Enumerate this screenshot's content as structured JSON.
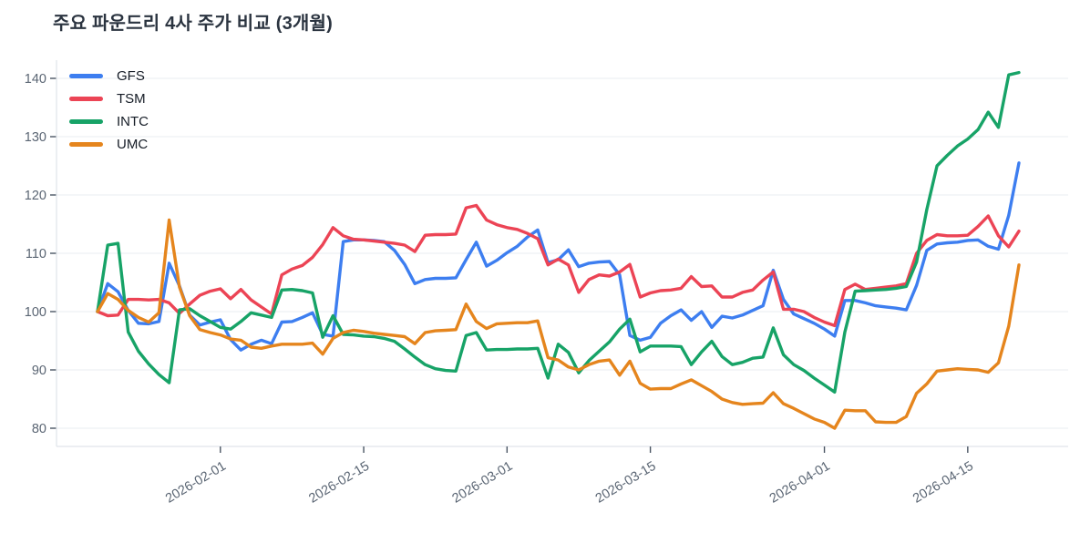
{
  "chart_data": {
    "type": "line",
    "title": "주요 파운드리 4사 주가 비교 (3개월)",
    "xlabel": "",
    "ylabel": "",
    "ylim": [
      78,
      142
    ],
    "y_ticks": [
      80,
      90,
      100,
      110,
      120,
      130,
      140
    ],
    "x_ticks": [
      "2026-02-01",
      "2026-02-15",
      "2026-03-01",
      "2026-03-15",
      "2026-04-01",
      "2026-04-15"
    ],
    "grid": true,
    "legend_position": "top-left",
    "x": [
      "2026-01-20",
      "2026-01-21",
      "2026-01-22",
      "2026-01-23",
      "2026-01-24",
      "2026-01-25",
      "2026-01-26",
      "2026-01-27",
      "2026-01-28",
      "2026-01-29",
      "2026-01-30",
      "2026-01-31",
      "2026-02-01",
      "2026-02-02",
      "2026-02-03",
      "2026-02-04",
      "2026-02-05",
      "2026-02-06",
      "2026-02-07",
      "2026-02-08",
      "2026-02-09",
      "2026-02-10",
      "2026-02-11",
      "2026-02-12",
      "2026-02-13",
      "2026-02-14",
      "2026-02-15",
      "2026-02-16",
      "2026-02-17",
      "2026-02-18",
      "2026-02-19",
      "2026-02-20",
      "2026-02-21",
      "2026-02-22",
      "2026-02-23",
      "2026-02-24",
      "2026-02-25",
      "2026-02-26",
      "2026-02-27",
      "2026-02-28",
      "2026-03-01",
      "2026-03-02",
      "2026-03-03",
      "2026-03-04",
      "2026-03-05",
      "2026-03-06",
      "2026-03-07",
      "2026-03-08",
      "2026-03-09",
      "2026-03-10",
      "2026-03-11",
      "2026-03-12",
      "2026-03-13",
      "2026-03-14",
      "2026-03-15",
      "2026-03-16",
      "2026-03-17",
      "2026-03-18",
      "2026-03-19",
      "2026-03-20",
      "2026-03-21",
      "2026-03-22",
      "2026-03-23",
      "2026-03-24",
      "2026-03-25",
      "2026-03-26",
      "2026-03-27",
      "2026-03-28",
      "2026-03-29",
      "2026-03-30",
      "2026-03-31",
      "2026-04-01",
      "2026-04-02",
      "2026-04-03",
      "2026-04-04",
      "2026-04-05",
      "2026-04-06",
      "2026-04-07",
      "2026-04-08",
      "2026-04-09",
      "2026-04-10",
      "2026-04-11",
      "2026-04-12",
      "2026-04-13",
      "2026-04-14",
      "2026-04-15",
      "2026-04-16",
      "2026-04-17",
      "2026-04-18",
      "2026-04-19",
      "2026-04-20"
    ],
    "series": [
      {
        "name": "GFS",
        "color": "#3d7ef0",
        "values": [
          100.0,
          104.8,
          103.4,
          100.2,
          98.0,
          97.9,
          98.3,
          108.3,
          104.4,
          99.4,
          97.7,
          98.2,
          98.6,
          95.2,
          93.4,
          94.4,
          95.1,
          94.5,
          98.2,
          98.3,
          99.0,
          99.8,
          96.1,
          95.8,
          112.0,
          112.3,
          112.3,
          112.2,
          112.0,
          110.5,
          108.1,
          104.8,
          105.5,
          105.7,
          105.7,
          105.8,
          108.9,
          111.9,
          107.8,
          108.8,
          110.1,
          111.2,
          112.8,
          114.0,
          108.4,
          108.9,
          110.6,
          107.7,
          108.3,
          108.5,
          108.6,
          106.3,
          95.9,
          95.1,
          95.6,
          98.0,
          99.3,
          100.3,
          98.5,
          100.0,
          97.3,
          99.2,
          98.9,
          99.4,
          100.2,
          101.0,
          107.1,
          102.1,
          99.6,
          98.8,
          98.0,
          97.0,
          95.8,
          101.9,
          101.9,
          101.5,
          101.0,
          100.8,
          100.6,
          100.3,
          104.5,
          110.5,
          111.6,
          111.8,
          111.9,
          112.2,
          112.3,
          111.2,
          110.7,
          116.5,
          125.5
        ]
      },
      {
        "name": "TSM",
        "color": "#ec4455",
        "values": [
          100.0,
          99.3,
          99.4,
          102.1,
          102.1,
          102.0,
          102.1,
          101.5,
          99.7,
          101.3,
          102.8,
          103.5,
          103.9,
          102.2,
          103.8,
          102.0,
          100.8,
          99.6,
          106.3,
          107.3,
          107.9,
          109.3,
          111.5,
          114.4,
          113.0,
          112.4,
          112.3,
          112.1,
          111.9,
          111.7,
          111.4,
          110.3,
          113.1,
          113.2,
          113.2,
          113.3,
          117.8,
          118.2,
          115.7,
          114.9,
          114.4,
          114.1,
          113.4,
          112.5,
          108.0,
          109.0,
          108.0,
          103.3,
          105.5,
          106.3,
          106.1,
          106.8,
          108.1,
          102.5,
          103.2,
          103.6,
          103.7,
          104.0,
          106.0,
          104.3,
          104.4,
          102.5,
          102.5,
          103.3,
          103.7,
          105.4,
          106.8,
          100.4,
          100.4,
          100.0,
          99.0,
          98.2,
          97.6,
          103.8,
          104.7,
          103.8,
          104.0,
          104.2,
          104.4,
          104.8,
          110.0,
          112.2,
          113.2,
          113.0,
          113.0,
          113.1,
          114.6,
          116.4,
          113.0,
          111.1,
          113.8
        ]
      },
      {
        "name": "INTC",
        "color": "#17a367",
        "values": [
          100.0,
          111.4,
          111.7,
          96.5,
          93.2,
          91.0,
          89.2,
          87.8,
          100.3,
          100.5,
          99.3,
          98.3,
          97.3,
          97.0,
          98.3,
          99.8,
          99.4,
          99.0,
          103.7,
          103.8,
          103.6,
          103.2,
          95.6,
          99.3,
          96.1,
          96.0,
          95.8,
          95.7,
          95.4,
          94.9,
          93.6,
          92.2,
          90.9,
          90.2,
          89.9,
          89.8,
          95.9,
          96.4,
          93.4,
          93.5,
          93.5,
          93.6,
          93.6,
          93.7,
          88.6,
          94.4,
          93.0,
          89.5,
          91.6,
          93.2,
          94.8,
          97.0,
          98.7,
          93.1,
          94.1,
          94.1,
          94.1,
          94.0,
          90.9,
          93.1,
          94.9,
          92.3,
          90.9,
          91.3,
          92.0,
          92.2,
          97.2,
          92.6,
          90.9,
          89.9,
          88.6,
          87.4,
          86.2,
          96.5,
          103.5,
          103.6,
          103.7,
          103.8,
          104.0,
          104.3,
          108.5,
          117.5,
          125.0,
          126.8,
          128.4,
          129.6,
          131.2,
          134.2,
          131.6,
          140.6,
          141.0
        ]
      },
      {
        "name": "UMC",
        "color": "#e5851d",
        "values": [
          100.0,
          103.1,
          102.1,
          100.2,
          99.0,
          98.2,
          99.8,
          115.7,
          104.2,
          99.3,
          96.9,
          96.4,
          96.0,
          95.3,
          95.1,
          93.9,
          93.7,
          94.1,
          94.4,
          94.4,
          94.4,
          94.6,
          92.7,
          95.4,
          96.4,
          96.8,
          96.6,
          96.3,
          96.1,
          95.9,
          95.7,
          94.5,
          96.4,
          96.7,
          96.8,
          96.9,
          101.3,
          98.3,
          97.1,
          97.9,
          98.0,
          98.1,
          98.1,
          98.4,
          92.1,
          91.7,
          90.5,
          90.0,
          90.9,
          91.5,
          91.7,
          89.1,
          91.5,
          87.7,
          86.7,
          86.8,
          86.8,
          87.6,
          88.3,
          87.3,
          86.3,
          85.0,
          84.4,
          84.1,
          84.2,
          84.3,
          86.1,
          84.2,
          83.4,
          82.5,
          81.6,
          81.0,
          80.0,
          83.1,
          83.0,
          83.0,
          81.1,
          81.0,
          81.0,
          82.0,
          86.0,
          87.6,
          89.8,
          90.0,
          90.2,
          90.1,
          90.0,
          89.6,
          91.2,
          97.5,
          108.0
        ]
      }
    ]
  },
  "style": {
    "background": "#ffffff",
    "grid_color": "#eef0f3",
    "axis_line_color": "#e0e4e9",
    "tick_mark_color": "#4a5563",
    "tick_text_color": "#5a6573",
    "title_color": "#2b3440",
    "legend_text_color": "#151c26"
  }
}
